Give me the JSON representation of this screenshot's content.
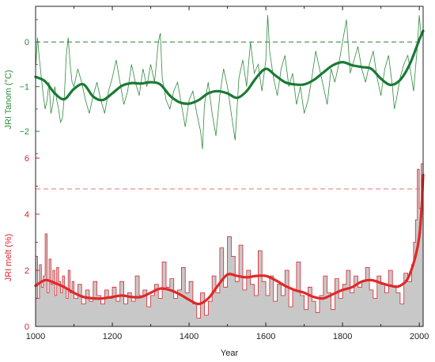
{
  "chart_data": [
    {
      "type": "line",
      "panel": "top",
      "ylabel": "JRI Tanom (°C)",
      "ylim": [
        -2.6,
        0.8
      ],
      "yticks": [
        0,
        -1,
        -2
      ],
      "ytick_labels": [
        "0",
        "−1",
        "−2"
      ],
      "reference_line": 0,
      "colors": {
        "annual": "#2e8b3e",
        "smooth": "#1a7a35",
        "reference": "#2e7d32"
      },
      "series": [
        {
          "kind": "annual",
          "x": [
            1000,
            1005,
            1010,
            1015,
            1020,
            1025,
            1030,
            1035,
            1040,
            1045,
            1050,
            1055,
            1060,
            1065,
            1070,
            1075,
            1080,
            1085,
            1090,
            1095,
            1100,
            1110,
            1120,
            1130,
            1140,
            1150,
            1160,
            1170,
            1180,
            1190,
            1200,
            1210,
            1220,
            1230,
            1240,
            1250,
            1260,
            1270,
            1280,
            1290,
            1300,
            1310,
            1320,
            1325,
            1330,
            1340,
            1350,
            1360,
            1370,
            1380,
            1390,
            1400,
            1410,
            1420,
            1430,
            1435,
            1440,
            1450,
            1460,
            1470,
            1480,
            1490,
            1500,
            1510,
            1520,
            1530,
            1540,
            1550,
            1560,
            1570,
            1580,
            1590,
            1600,
            1605,
            1610,
            1620,
            1630,
            1640,
            1650,
            1660,
            1670,
            1680,
            1690,
            1700,
            1710,
            1720,
            1730,
            1740,
            1750,
            1760,
            1770,
            1780,
            1790,
            1800,
            1810,
            1820,
            1830,
            1840,
            1850,
            1860,
            1870,
            1880,
            1890,
            1900,
            1910,
            1920,
            1930,
            1935,
            1940,
            1950,
            1960,
            1970,
            1980,
            1985,
            1990,
            1995,
            2000,
            2005
          ],
          "y": [
            -0.6,
            0.1,
            -0.4,
            -0.8,
            -1.2,
            -1.5,
            -1.3,
            -0.9,
            -1.6,
            -1.4,
            -1.0,
            -1.3,
            -1.5,
            -1.8,
            -1.7,
            -1.2,
            -0.3,
            0.1,
            -0.5,
            -0.9,
            -1.0,
            -0.6,
            -0.9,
            -1.3,
            -1.6,
            -1.2,
            -0.9,
            -1.3,
            -1.6,
            -1.1,
            -0.8,
            -0.4,
            -0.9,
            -1.4,
            -1.1,
            -0.5,
            -0.9,
            -1.2,
            -0.6,
            -1.0,
            -0.5,
            -0.9,
            0.0,
            0.2,
            -0.8,
            -1.3,
            -1.5,
            -1.1,
            -0.9,
            -1.4,
            -1.9,
            -1.3,
            -1.1,
            -1.6,
            -2.0,
            -2.4,
            -1.4,
            -0.9,
            -1.6,
            -2.1,
            -1.2,
            -0.6,
            -1.0,
            -1.6,
            -2.2,
            -0.8,
            -0.4,
            -1.0,
            0.0,
            -0.7,
            -0.5,
            -1.1,
            -0.4,
            0.6,
            -0.2,
            -0.8,
            -1.2,
            -0.6,
            -0.3,
            -1.0,
            -0.7,
            -1.4,
            -1.0,
            -1.6,
            -1.3,
            -0.8,
            -0.2,
            -0.6,
            -1.0,
            -1.4,
            -0.6,
            -0.9,
            -0.5,
            0.0,
            0.5,
            -0.7,
            -0.4,
            -0.1,
            -0.6,
            -0.9,
            -0.5,
            -0.2,
            -0.8,
            -1.2,
            -0.6,
            -0.3,
            -1.0,
            -1.5,
            -1.3,
            -0.8,
            -0.5,
            -0.3,
            -0.8,
            -1.1,
            -0.6,
            -0.1,
            0.6,
            0.1
          ]
        },
        {
          "kind": "smooth",
          "x": [
            1000,
            1025,
            1050,
            1075,
            1100,
            1125,
            1150,
            1175,
            1200,
            1225,
            1250,
            1275,
            1300,
            1325,
            1350,
            1375,
            1400,
            1425,
            1450,
            1475,
            1500,
            1525,
            1550,
            1575,
            1600,
            1625,
            1650,
            1675,
            1700,
            1725,
            1750,
            1775,
            1800,
            1825,
            1850,
            1875,
            1900,
            1925,
            1950,
            1975,
            2000,
            2010
          ],
          "y": [
            -0.78,
            -0.88,
            -1.15,
            -1.28,
            -1.05,
            -0.95,
            -1.22,
            -1.3,
            -1.15,
            -0.98,
            -0.92,
            -0.93,
            -0.9,
            -0.95,
            -1.2,
            -1.35,
            -1.38,
            -1.3,
            -1.15,
            -1.1,
            -1.15,
            -1.25,
            -1.1,
            -0.8,
            -0.6,
            -0.75,
            -0.9,
            -0.95,
            -0.95,
            -0.85,
            -0.68,
            -0.52,
            -0.45,
            -0.52,
            -0.56,
            -0.6,
            -0.82,
            -0.96,
            -0.85,
            -0.5,
            0.05,
            0.25
          ]
        }
      ]
    },
    {
      "type": "area",
      "panel": "bottom",
      "xlabel": "Year",
      "ylabel": "JRI melt (%)",
      "xlim": [
        1000,
        2010
      ],
      "ylim": [
        0,
        6
      ],
      "xticks": [
        1000,
        1200,
        1400,
        1600,
        1800,
        2000
      ],
      "xtick_labels": [
        "1000",
        "1200",
        "1400",
        "1600",
        "1800",
        "2000"
      ],
      "yticks": [
        0,
        2,
        4,
        6
      ],
      "ytick_labels": [
        "0",
        "2",
        "4",
        "6"
      ],
      "reference_line": 4.9,
      "colors": {
        "annual": "#d9232d",
        "smooth": "#e02828",
        "fill": "#c8c8c8",
        "reference": "#e57373"
      },
      "series": [
        {
          "kind": "annual",
          "x": [
            1000,
            1005,
            1010,
            1015,
            1020,
            1025,
            1030,
            1035,
            1040,
            1045,
            1050,
            1055,
            1060,
            1065,
            1070,
            1075,
            1080,
            1085,
            1090,
            1095,
            1100,
            1110,
            1120,
            1130,
            1140,
            1150,
            1160,
            1170,
            1180,
            1190,
            1200,
            1210,
            1220,
            1230,
            1240,
            1250,
            1260,
            1270,
            1280,
            1290,
            1300,
            1310,
            1320,
            1330,
            1340,
            1350,
            1360,
            1370,
            1380,
            1390,
            1400,
            1410,
            1420,
            1430,
            1440,
            1450,
            1460,
            1470,
            1480,
            1490,
            1500,
            1510,
            1520,
            1530,
            1540,
            1550,
            1560,
            1570,
            1580,
            1590,
            1600,
            1610,
            1620,
            1630,
            1640,
            1650,
            1660,
            1670,
            1680,
            1690,
            1700,
            1710,
            1720,
            1730,
            1740,
            1750,
            1760,
            1770,
            1780,
            1790,
            1800,
            1810,
            1820,
            1830,
            1840,
            1850,
            1860,
            1870,
            1880,
            1890,
            1900,
            1910,
            1920,
            1930,
            1940,
            1950,
            1960,
            1970,
            1980,
            1985,
            1990,
            1995,
            2000,
            2005
          ],
          "y": [
            2.5,
            1.0,
            2.2,
            1.4,
            1.8,
            3.3,
            1.2,
            2.4,
            1.5,
            2.0,
            1.1,
            2.1,
            1.6,
            1.2,
            1.8,
            1.4,
            1.0,
            2.0,
            1.2,
            1.6,
            1.0,
            1.5,
            0.8,
            1.3,
            0.9,
            1.6,
            1.1,
            0.8,
            1.3,
            1.0,
            1.4,
            0.9,
            1.6,
            0.8,
            1.2,
            0.9,
            1.8,
            1.1,
            1.3,
            0.7,
            1.1,
            1.5,
            1.0,
            2.3,
            1.4,
            1.7,
            1.0,
            1.3,
            2.1,
            1.2,
            1.6,
            0.8,
            0.3,
            1.2,
            0.4,
            0.9,
            1.8,
            1.2,
            2.8,
            1.4,
            3.2,
            2.5,
            1.6,
            2.9,
            1.3,
            2.0,
            1.5,
            1.1,
            2.7,
            1.6,
            1.1,
            1.8,
            0.9,
            1.5,
            1.1,
            2.0,
            0.7,
            1.3,
            2.3,
            1.1,
            0.6,
            1.4,
            0.9,
            0.5,
            1.1,
            1.8,
            1.2,
            0.6,
            1.7,
            1.0,
            1.5,
            2.0,
            1.2,
            1.8,
            1.4,
            1.6,
            2.1,
            1.3,
            1.0,
            1.8,
            1.5,
            1.2,
            2.0,
            1.4,
            1.2,
            0.8,
            1.9,
            1.6,
            2.2,
            3.0,
            3.8,
            5.6,
            4.2,
            5.8
          ]
        },
        {
          "kind": "smooth",
          "x": [
            1000,
            1025,
            1050,
            1075,
            1100,
            1125,
            1150,
            1175,
            1200,
            1225,
            1250,
            1275,
            1300,
            1325,
            1350,
            1375,
            1400,
            1425,
            1450,
            1475,
            1500,
            1525,
            1550,
            1575,
            1600,
            1625,
            1650,
            1675,
            1700,
            1725,
            1750,
            1775,
            1800,
            1825,
            1850,
            1875,
            1900,
            1925,
            1950,
            1975,
            2000,
            2010
          ],
          "y": [
            1.45,
            1.65,
            1.55,
            1.4,
            1.2,
            1.05,
            1.0,
            1.0,
            1.05,
            1.1,
            1.05,
            1.05,
            1.2,
            1.35,
            1.3,
            1.15,
            0.95,
            0.8,
            1.0,
            1.45,
            1.85,
            1.8,
            1.75,
            1.8,
            1.8,
            1.65,
            1.45,
            1.3,
            1.2,
            1.05,
            1.0,
            1.15,
            1.3,
            1.4,
            1.6,
            1.65,
            1.55,
            1.45,
            1.45,
            1.85,
            3.2,
            5.4
          ]
        }
      ]
    }
  ]
}
